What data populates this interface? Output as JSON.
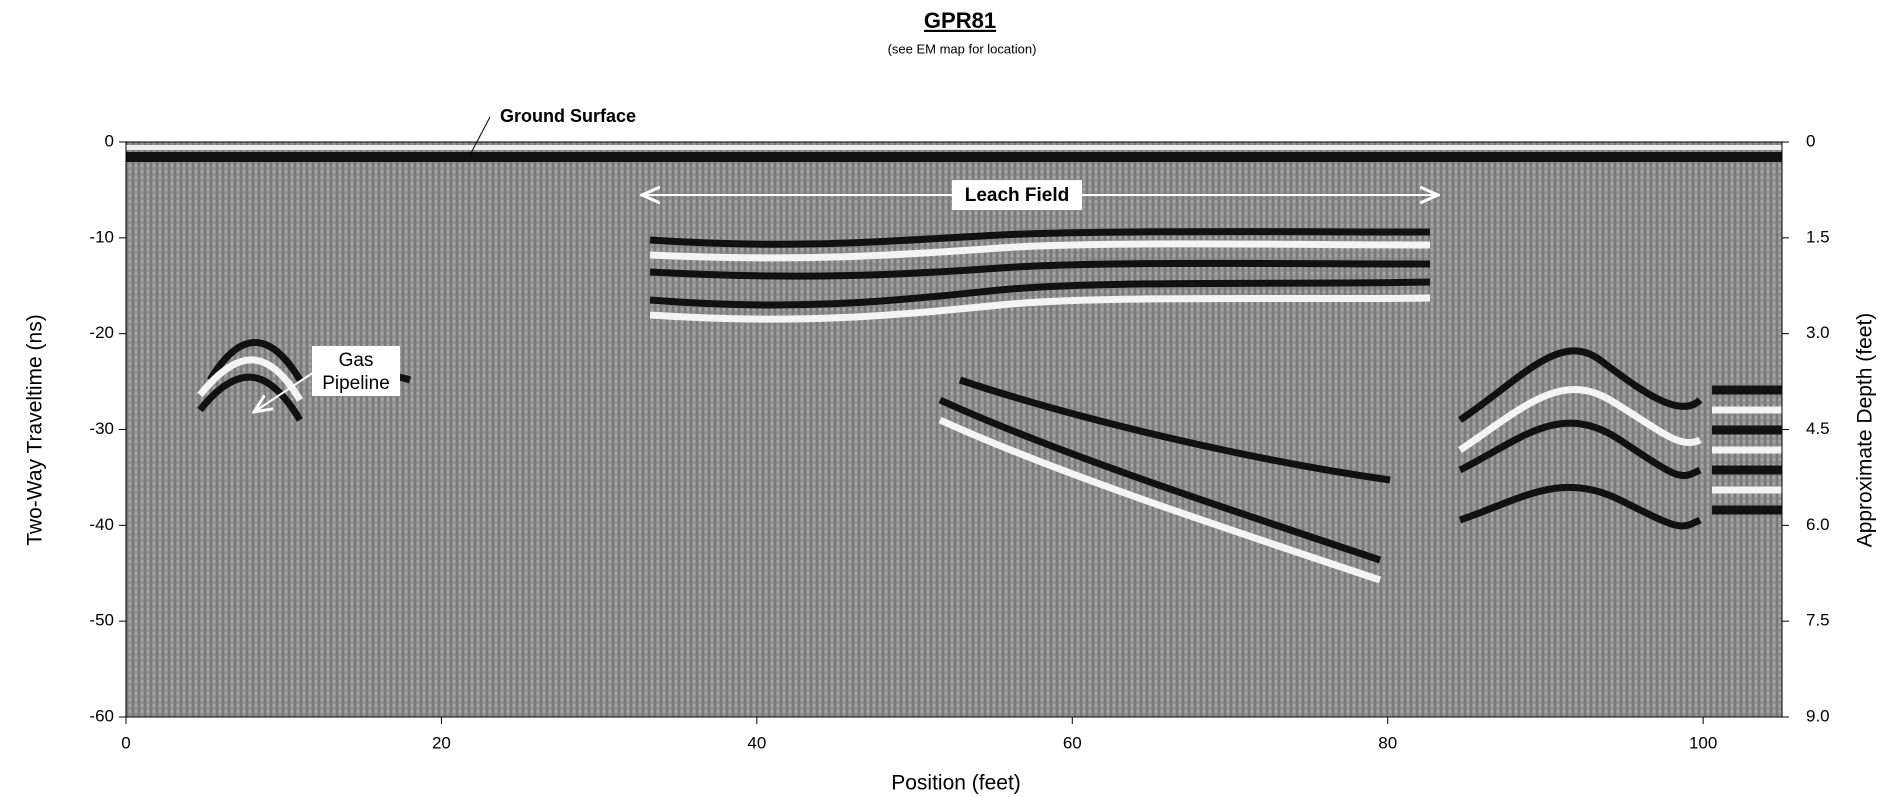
{
  "chart_data": {
    "type": "radargram",
    "title": "GPR81",
    "subtitle": "(see EM map for location)",
    "x_label": "Position (feet)",
    "y_label": "Two-Way Traveltime (ns)",
    "y2_label": "Approximate Depth (feet)",
    "xlim": [
      0,
      105
    ],
    "xticks": [
      0,
      20,
      40,
      60,
      80,
      100
    ],
    "ylim": [
      -60,
      0
    ],
    "yticks": [
      0,
      -10,
      -20,
      -30,
      -40,
      -50,
      -60
    ],
    "y2lim": [
      9,
      0
    ],
    "y2ticks": [
      0,
      1.5,
      {
        "value": 3,
        "label": "3.0"
      },
      4.5,
      {
        "value": 6,
        "label": "6.0"
      },
      7.5,
      {
        "value": 9,
        "label": "9.0"
      }
    ],
    "annotations": {
      "ground_surface": "Ground Surface",
      "leach_field": "Leach Field",
      "gas_pipeline": [
        "Gas",
        "Pipeline"
      ]
    }
  }
}
